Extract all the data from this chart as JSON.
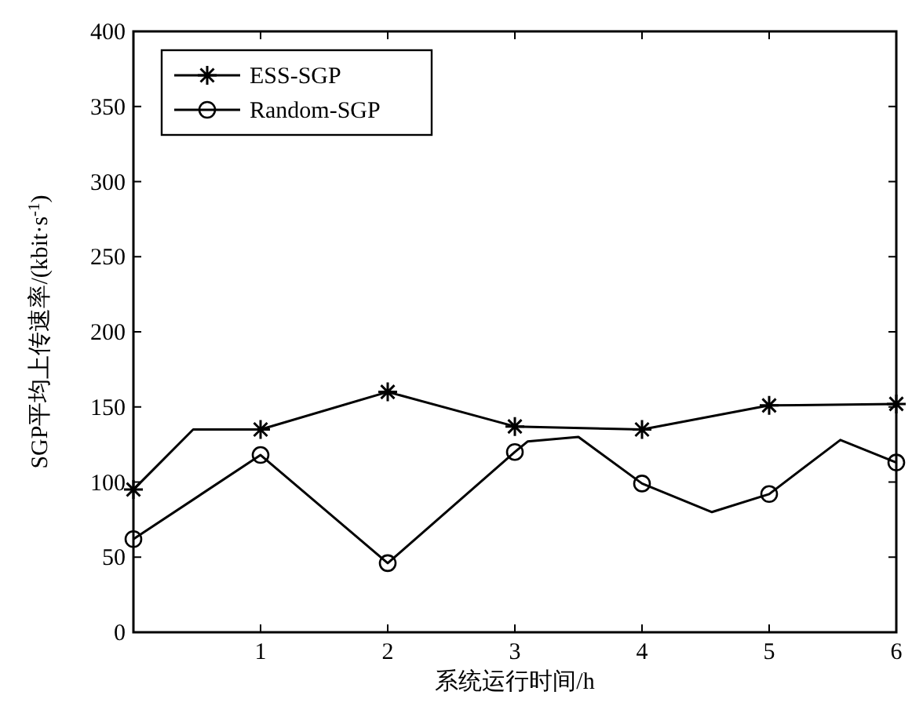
{
  "chart_data": {
    "type": "line",
    "xlabel": "系统运行时间/h",
    "ylabel": "SGP平均上传速率/(kbit·s$^{-1}$)",
    "xlim": [
      0,
      6
    ],
    "xticks": [
      1,
      2,
      3,
      4,
      5,
      6
    ],
    "ylim": [
      0,
      400
    ],
    "yticks": [
      0,
      50,
      100,
      150,
      200,
      250,
      300,
      350,
      400
    ],
    "grid": false,
    "legend": "top left",
    "line_style": "solid",
    "series": [
      {
        "name": "ESS-SGP",
        "color": "#000000",
        "marker": "cross",
        "x": [
          0,
          0.47,
          1,
          2,
          3,
          4,
          5,
          6
        ],
        "values": [
          95,
          135,
          135,
          160,
          137,
          135,
          151,
          152
        ]
      },
      {
        "name": "Random-SGP",
        "color": "#000000",
        "marker": "circle",
        "x": [
          0,
          1,
          2,
          3,
          3.1,
          3.5,
          4,
          4.55,
          5,
          5.56,
          6
        ],
        "values": [
          62,
          118,
          46,
          120,
          127,
          130,
          99,
          80,
          92,
          128,
          113
        ]
      }
    ]
  }
}
